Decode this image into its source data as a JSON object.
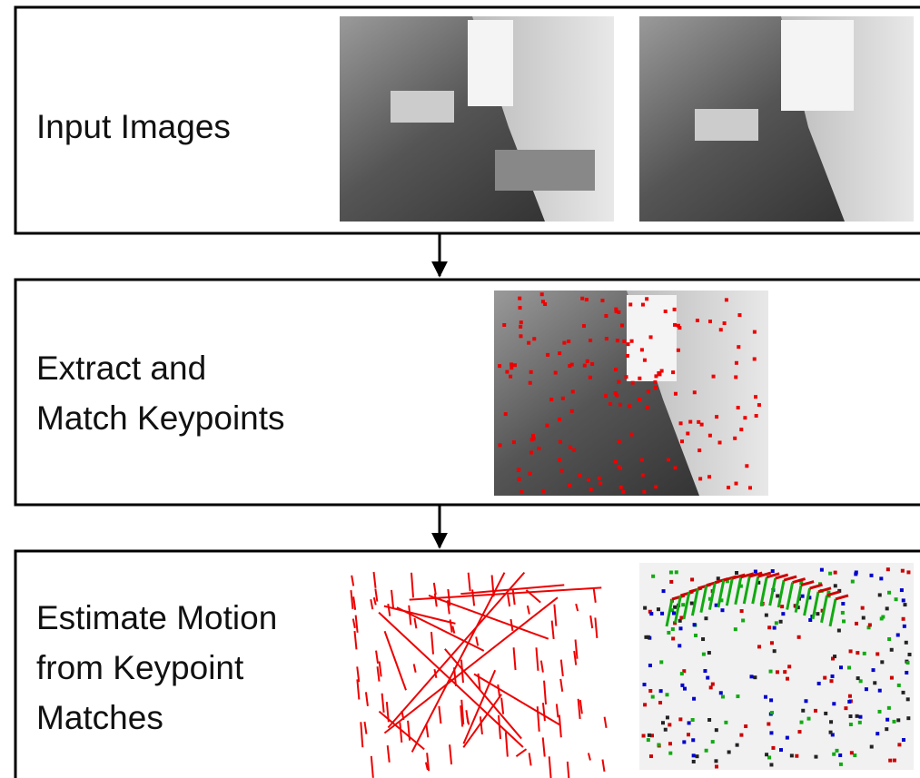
{
  "nodes": [
    {
      "lines": [
        "Input Images"
      ]
    },
    {
      "lines": [
        "Extract and",
        "Match Keypoints"
      ]
    },
    {
      "lines": [
        "Estimate Motion",
        "from Keypoint",
        "Matches"
      ]
    }
  ]
}
